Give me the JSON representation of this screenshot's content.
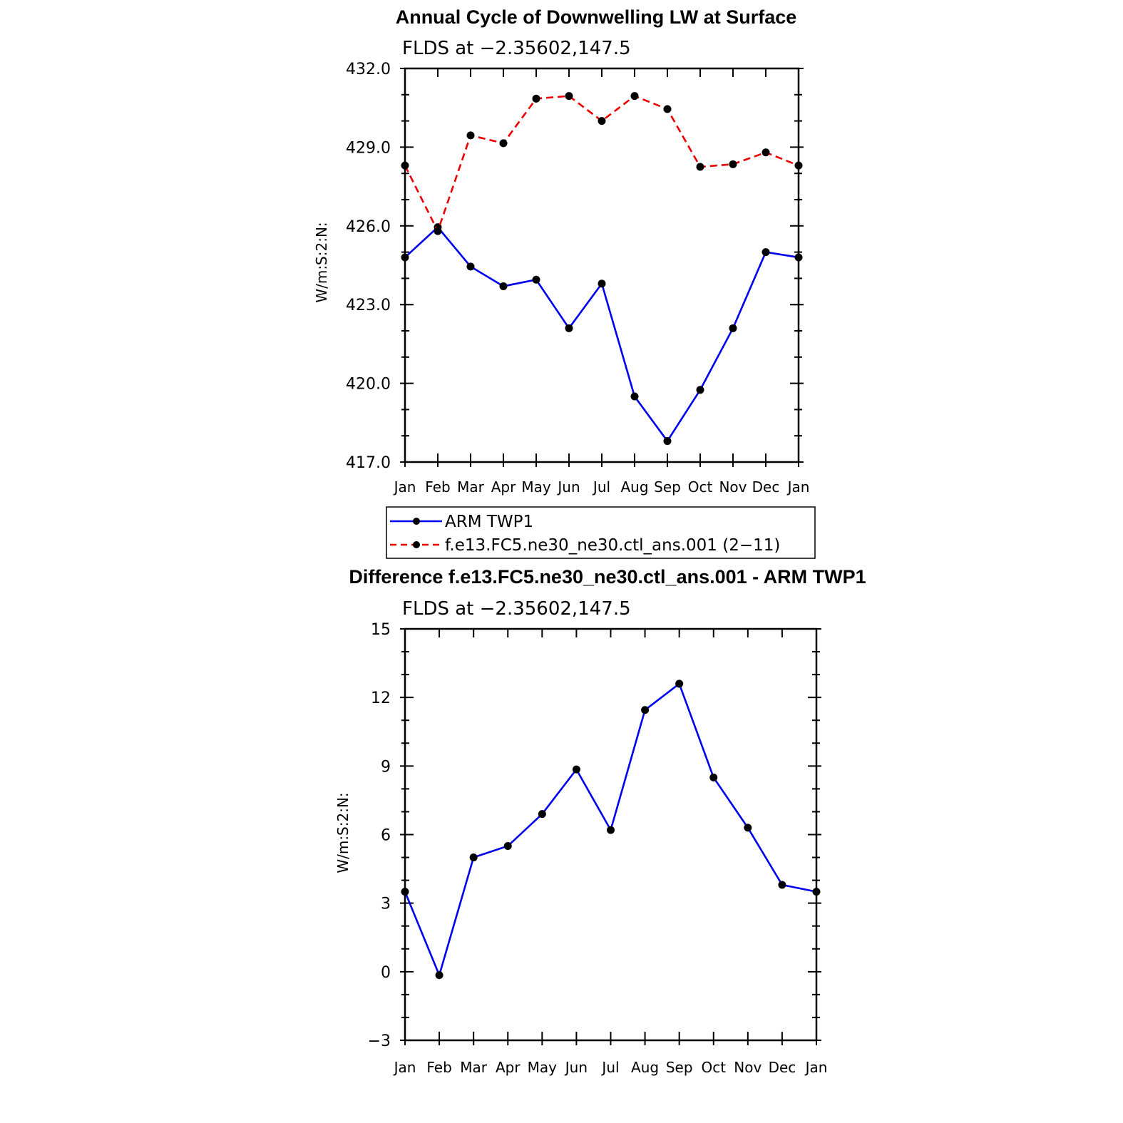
{
  "chart_data": [
    {
      "type": "line",
      "title": "Annual Cycle of Downwelling LW at Surface",
      "subtitle": "FLDS at −2.35602,147.5",
      "ylabel": "W/m:S:2:N:",
      "categories": [
        "Jan",
        "Feb",
        "Mar",
        "Apr",
        "May",
        "Jun",
        "Jul",
        "Aug",
        "Sep",
        "Oct",
        "Nov",
        "Dec",
        "Jan"
      ],
      "ylim": [
        417.0,
        432.0
      ],
      "yticks": [
        "417.0",
        "420.0",
        "423.0",
        "426.0",
        "429.0",
        "432.0"
      ],
      "series": [
        {
          "name": "ARM TWP1",
          "color": "#0000ee",
          "dash": "solid",
          "values": [
            424.8,
            425.95,
            424.45,
            423.7,
            423.95,
            422.1,
            423.8,
            419.5,
            417.8,
            419.75,
            422.1,
            425.0,
            424.8
          ]
        },
        {
          "name": "f.e13.FC5.ne30_ne30.ctl_ans.001 (2−11)",
          "color": "#ee0000",
          "dash": "dashed",
          "values": [
            428.3,
            425.8,
            429.45,
            429.15,
            430.85,
            430.95,
            430.0,
            430.95,
            430.45,
            428.25,
            428.35,
            428.8,
            428.3
          ]
        }
      ],
      "legend": [
        "ARM TWP1",
        "f.e13.FC5.ne30_ne30.ctl_ans.001 (2−11)"
      ]
    },
    {
      "type": "line",
      "title": "Difference f.e13.FC5.ne30_ne30.ctl_ans.001 - ARM TWP1",
      "subtitle": "FLDS at −2.35602,147.5",
      "ylabel": "W/m:S:2:N:",
      "categories": [
        "Jan",
        "Feb",
        "Mar",
        "Apr",
        "May",
        "Jun",
        "Jul",
        "Aug",
        "Sep",
        "Oct",
        "Nov",
        "Dec",
        "Jan"
      ],
      "ylim": [
        -3,
        15
      ],
      "yticks": [
        "−3",
        "0",
        "3",
        "6",
        "9",
        "12",
        "15"
      ],
      "series": [
        {
          "name": "Difference",
          "color": "#0000ee",
          "dash": "solid",
          "values": [
            3.5,
            -0.15,
            5.0,
            5.5,
            6.9,
            8.85,
            6.2,
            11.45,
            12.6,
            8.5,
            6.3,
            3.8,
            3.5
          ]
        }
      ]
    }
  ]
}
